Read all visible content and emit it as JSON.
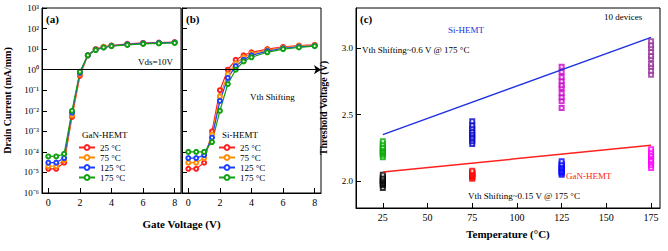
{
  "chart_data": [
    {
      "type": "line",
      "title": "(a)",
      "ylabel": "Drain Current (mA/mm)",
      "xlabel": "Gate Voltage (V)",
      "log": "y",
      "grid": false,
      "marker": "open_circle",
      "legend": "lower center",
      "legend_title": "GaN-HEMT",
      "x": [
        0,
        0.5,
        1,
        1.5,
        2,
        2.5,
        3,
        3.5,
        4,
        5,
        6,
        7,
        8
      ],
      "xlim": [
        -0.4,
        8.4
      ],
      "xticks": [
        0,
        2,
        4,
        6,
        8
      ],
      "ylim": [
        1e-06,
        1000
      ],
      "yticks": [
        {
          "value": 1e-06,
          "label": "10⁻⁶"
        },
        {
          "value": 1e-05,
          "label": "10⁻⁵"
        },
        {
          "value": 0.0001,
          "label": "10⁻⁴"
        },
        {
          "value": 0.001,
          "label": "10⁻³"
        },
        {
          "value": 0.01,
          "label": "10⁻²"
        },
        {
          "value": 0.1,
          "label": "10⁻¹"
        },
        {
          "value": 1,
          "label": "10⁰"
        },
        {
          "value": 10,
          "label": "10¹"
        },
        {
          "value": 100,
          "label": "10²"
        },
        {
          "value": 1000,
          "label": "10³"
        }
      ],
      "reference_line": 1,
      "annotations": [
        {
          "text": "Vds=10V"
        }
      ],
      "series": [
        {
          "name": "25 °C",
          "color": "#ff2020",
          "values": [
            1.5e-05,
            1.5e-05,
            3e-05,
            0.005,
            0.5,
            5,
            10,
            13,
            15,
            18,
            20,
            21,
            22
          ]
        },
        {
          "name": "75 °C",
          "color": "#ff8c00",
          "values": [
            2e-05,
            2e-05,
            4e-05,
            0.006,
            0.6,
            5,
            10,
            13,
            15,
            17,
            19,
            20,
            21
          ]
        },
        {
          "name": "125 °C",
          "color": "#2040ff",
          "values": [
            3e-05,
            3e-05,
            5e-05,
            0.008,
            0.7,
            5,
            9.5,
            12,
            14.5,
            17,
            19,
            20,
            21
          ]
        },
        {
          "name": "175 °C",
          "color": "#10a010",
          "values": [
            6e-05,
            6e-05,
            8e-05,
            0.01,
            0.8,
            5,
            9,
            12,
            14,
            16,
            18,
            19,
            20
          ]
        }
      ]
    },
    {
      "type": "line",
      "title": "(b)",
      "log": "y",
      "grid": false,
      "marker": "open_circle",
      "legend": "lower center",
      "legend_title": "Si-HEMT",
      "tick_labels": "x",
      "x": [
        0,
        0.5,
        1,
        1.5,
        2,
        2.5,
        3,
        3.5,
        4,
        5,
        6,
        7,
        8
      ],
      "xlim": [
        -0.4,
        8.4
      ],
      "xticks": [
        0,
        2,
        4,
        6,
        8
      ],
      "ylim": [
        1e-06,
        1000
      ],
      "yticks": [
        1e-06,
        1e-05,
        0.0001,
        0.001,
        0.01,
        0.1,
        1,
        10,
        100,
        1000
      ],
      "reference_line": 1,
      "annotations": [
        {
          "text": "Vth Shifting"
        }
      ],
      "series": [
        {
          "name": "25 °C",
          "color": "#ff2020",
          "values": [
            1.5e-05,
            1.5e-05,
            3e-05,
            0.001,
            0.1,
            1,
            3,
            5,
            7,
            10,
            13,
            15,
            16
          ]
        },
        {
          "name": "75 °C",
          "color": "#ff8c00",
          "values": [
            3e-05,
            3e-05,
            5e-05,
            0.0007,
            0.05,
            0.6,
            2,
            4,
            6,
            9,
            12,
            14,
            15
          ]
        },
        {
          "name": "125 °C",
          "color": "#2040ff",
          "values": [
            5e-05,
            5e-05,
            7e-05,
            0.0005,
            0.03,
            0.4,
            1.5,
            3,
            5,
            8,
            11,
            13,
            14.5
          ]
        },
        {
          "name": "175 °C",
          "color": "#10a010",
          "values": [
            0.0001,
            0.0001,
            0.0001,
            0.0003,
            0.01,
            0.2,
            1,
            2.5,
            4,
            7,
            10,
            12,
            14
          ]
        }
      ]
    },
    {
      "type": "scatter",
      "title": "(c)",
      "ylabel": "Threshold Voltage (V)",
      "xlabel": "Temperature (°C)",
      "grid": false,
      "xlim": [
        10,
        180
      ],
      "xticks": [
        25,
        50,
        75,
        100,
        125,
        150,
        175
      ],
      "ylim": [
        1.8,
        3.3
      ],
      "yticks": [
        {
          "value": 2,
          "label": "2.0"
        },
        {
          "value": 2.5,
          "label": "2.5"
        },
        {
          "value": 3,
          "label": "3.0"
        }
      ],
      "annotations": [
        {
          "text": "10 devices"
        },
        {
          "text": "Si-HEMT",
          "color": "#2030e0"
        },
        {
          "text": "Vth Shifting~0.6 V @ 175 °C"
        },
        {
          "text": "GaN-HEMT",
          "color": "#ff2020"
        },
        {
          "text": "Vth Shifting~0.15 V @ 175 °C"
        }
      ],
      "series": [
        {
          "type": "line",
          "color": "#2030e0",
          "x": [
            25,
            175
          ],
          "values": [
            2.35,
            3.08
          ]
        },
        {
          "type": "line",
          "color": "#ff2020",
          "x": [
            25,
            175
          ],
          "values": [
            2.07,
            2.27
          ]
        },
        {
          "color": "#000000",
          "marker": "open_square",
          "x": [
            25,
            25,
            25,
            25,
            25,
            25,
            25,
            25,
            25,
            25
          ],
          "values": [
            1.95,
            1.97,
            1.98,
            1.99,
            2.0,
            2.0,
            2.01,
            2.02,
            2.03,
            2.05
          ]
        },
        {
          "color": "#ff0000",
          "marker": "open_square",
          "x": [
            75,
            75,
            75,
            75,
            75,
            75,
            75,
            75,
            75,
            75
          ],
          "values": [
            2.02,
            2.03,
            2.03,
            2.04,
            2.05,
            2.05,
            2.06,
            2.06,
            2.07,
            2.08
          ]
        },
        {
          "color": "#0000ff",
          "marker": "open_square",
          "x": [
            125,
            125,
            125,
            125,
            125,
            125,
            125,
            125,
            125,
            125
          ],
          "values": [
            2.05,
            2.06,
            2.07,
            2.08,
            2.09,
            2.1,
            2.11,
            2.12,
            2.13,
            2.15
          ]
        },
        {
          "color": "#ff00ff",
          "marker": "open_square",
          "x": [
            175,
            175,
            175,
            175,
            175,
            175,
            175,
            175,
            175,
            175
          ],
          "values": [
            2.1,
            2.12,
            2.14,
            2.15,
            2.16,
            2.18,
            2.19,
            2.2,
            2.22,
            2.24
          ]
        },
        {
          "color": "#00aa00",
          "marker": "open_square",
          "x": [
            25,
            25,
            25,
            25,
            25,
            25,
            25,
            25,
            25,
            25
          ],
          "values": [
            2.18,
            2.2,
            2.21,
            2.22,
            2.23,
            2.24,
            2.25,
            2.26,
            2.28,
            2.3
          ]
        },
        {
          "color": "#0000cc",
          "marker": "open_square",
          "x": [
            75,
            75,
            75,
            75,
            75,
            75,
            75,
            75,
            75,
            75
          ],
          "values": [
            2.28,
            2.3,
            2.32,
            2.33,
            2.35,
            2.36,
            2.38,
            2.4,
            2.42,
            2.45
          ]
        },
        {
          "color": "#cc00cc",
          "marker": "open_square",
          "x": [
            125,
            125,
            125,
            125,
            125,
            125,
            125,
            125,
            125,
            125
          ],
          "values": [
            2.55,
            2.6,
            2.63,
            2.66,
            2.7,
            2.72,
            2.75,
            2.78,
            2.82,
            2.86
          ]
        },
        {
          "color": "#993399",
          "marker": "open_square",
          "x": [
            175,
            175,
            175,
            175,
            175,
            175,
            175,
            175,
            175,
            175
          ],
          "values": [
            2.8,
            2.83,
            2.86,
            2.88,
            2.92,
            2.94,
            2.97,
            3.0,
            3.02,
            3.05
          ]
        }
      ]
    }
  ]
}
